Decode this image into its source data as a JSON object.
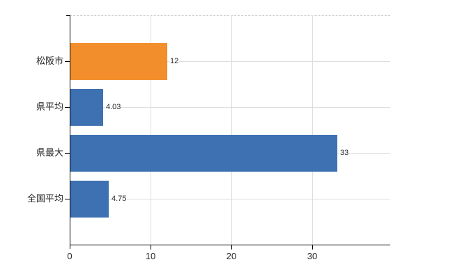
{
  "chart_data": {
    "type": "bar",
    "orientation": "horizontal",
    "title": "",
    "xlabel": "",
    "ylabel": "",
    "categories": [
      "松阪市",
      "県平均",
      "県最大",
      "全国平均"
    ],
    "values": [
      12,
      4.03,
      33,
      4.75
    ],
    "value_labels": [
      "12",
      "4.03",
      "33",
      "4.75"
    ],
    "bar_colors": [
      "#f28e2b",
      "#3e71b1",
      "#3e71b1",
      "#3e71b1"
    ],
    "xlim": [
      0,
      39.6
    ],
    "x_ticks": [
      0,
      10,
      20,
      30
    ],
    "x_tick_labels": [
      "0",
      "10",
      "20",
      "30"
    ],
    "grid": true,
    "legend": "none",
    "highlight_category": "松阪市"
  },
  "colors": {
    "bar_blue": "#3e71b1",
    "bar_orange": "#f28e2b",
    "gridline": "#dddddd",
    "axis": "#000000",
    "text": "#262626",
    "background": "#ffffff"
  }
}
